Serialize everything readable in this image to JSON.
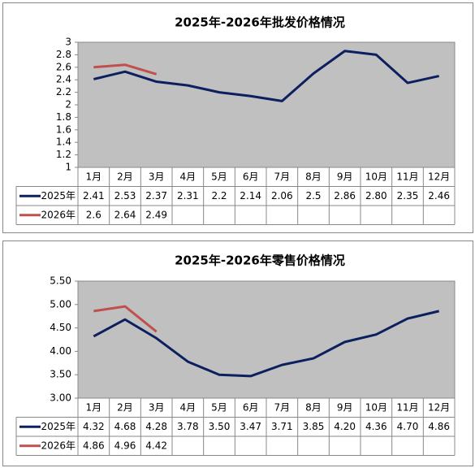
{
  "chart_data": [
    {
      "type": "line",
      "title": "2025年-2026年批发价格情况",
      "categories": [
        "1月",
        "2月",
        "3月",
        "4月",
        "5月",
        "6月",
        "7月",
        "8月",
        "9月",
        "10月",
        "11月",
        "12月"
      ],
      "series": [
        {
          "name": "2025年",
          "color": "#0c1f5e",
          "values": [
            2.41,
            2.53,
            2.37,
            2.31,
            2.2,
            2.14,
            2.06,
            2.5,
            2.86,
            2.8,
            2.35,
            2.46
          ],
          "value_labels": [
            "2.41",
            "2.53",
            "2.37",
            "2.31",
            "2.2",
            "2.14",
            "2.06",
            "2.5",
            "2.86",
            "2.80",
            "2.35",
            "2.46"
          ]
        },
        {
          "name": "2026年",
          "color": "#c0504d",
          "values": [
            2.6,
            2.64,
            2.49,
            null,
            null,
            null,
            null,
            null,
            null,
            null,
            null,
            null
          ],
          "value_labels": [
            "2.6",
            "2.64",
            "2.49",
            null,
            null,
            null,
            null,
            null,
            null,
            null,
            null,
            null
          ]
        }
      ],
      "ylim": [
        1,
        3
      ],
      "yticks": [
        1,
        1.2,
        1.4,
        1.6,
        1.8,
        2,
        2.2,
        2.4,
        2.6,
        2.8,
        3
      ]
    },
    {
      "type": "line",
      "title": "2025年-2026年零售价格情况",
      "categories": [
        "1月",
        "2月",
        "3月",
        "4月",
        "5月",
        "6月",
        "7月",
        "8月",
        "9月",
        "10月",
        "11月",
        "12月"
      ],
      "series": [
        {
          "name": "2025年",
          "color": "#0c1f5e",
          "values": [
            4.32,
            4.68,
            4.28,
            3.78,
            3.5,
            3.47,
            3.71,
            3.85,
            4.2,
            4.36,
            4.7,
            4.86
          ],
          "value_labels": [
            "4.32",
            "4.68",
            "4.28",
            "3.78",
            "3.50",
            "3.47",
            "3.71",
            "3.85",
            "4.20",
            "4.36",
            "4.70",
            "4.86"
          ]
        },
        {
          "name": "2026年",
          "color": "#c0504d",
          "values": [
            4.86,
            4.96,
            4.42,
            null,
            null,
            null,
            null,
            null,
            null,
            null,
            null,
            null
          ],
          "value_labels": [
            "4.86",
            "4.96",
            "4.42",
            null,
            null,
            null,
            null,
            null,
            null,
            null,
            null,
            null
          ]
        }
      ],
      "ylim": [
        3,
        5.5
      ],
      "yticks": [
        {
          "value": 3,
          "label": "3.00"
        },
        {
          "value": 3.5,
          "label": "3.50"
        },
        {
          "value": 4,
          "label": "4.00"
        },
        {
          "value": 4.5,
          "label": "4.50"
        },
        {
          "value": 5,
          "label": "5.00"
        },
        {
          "value": 5.5,
          "label": "5.50"
        }
      ]
    }
  ]
}
